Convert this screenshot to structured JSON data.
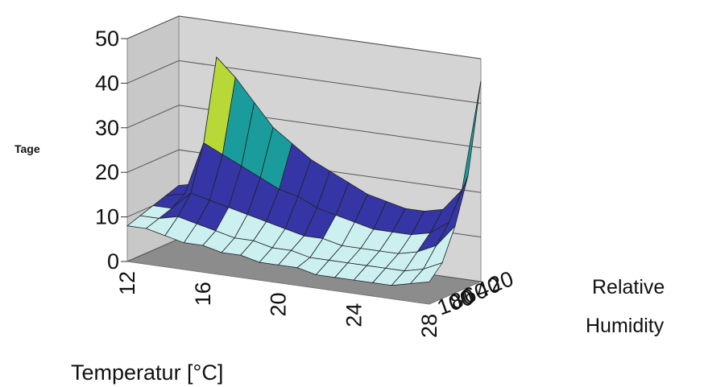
{
  "chart_data": {
    "type": "surface",
    "y_label": "Tage",
    "x_label": "Temperatur [°C]",
    "z_label_lines": [
      "Relative",
      "Humidity"
    ],
    "categories": [
      "12",
      null,
      null,
      null,
      "16",
      null,
      null,
      null,
      "20",
      null,
      null,
      null,
      "24",
      null,
      null,
      null,
      "28"
    ],
    "series": [
      {
        "name": "20",
        "values": [
          12,
          13,
          42,
          38,
          33,
          28,
          25,
          22,
          20,
          18,
          16,
          15,
          14,
          14,
          15,
          20,
          45
        ]
      },
      {
        "name": "40",
        "values": [
          11,
          12,
          24,
          22,
          20,
          18,
          16,
          15,
          13,
          12,
          11,
          10,
          10,
          10,
          11,
          14,
          25
        ]
      },
      {
        "name": "60",
        "values": [
          10,
          10,
          14,
          13,
          12,
          11,
          10,
          9,
          8,
          8,
          7,
          7,
          7,
          7,
          8,
          10,
          15
        ]
      },
      {
        "name": "80",
        "values": [
          9,
          9,
          10,
          9,
          8,
          7,
          7,
          6,
          6,
          5,
          5,
          5,
          5,
          5,
          5,
          6,
          8
        ]
      },
      {
        "name": "100",
        "values": [
          8,
          8,
          7,
          6,
          6,
          5,
          5,
          4,
          4,
          4,
          3,
          3,
          3,
          3,
          3,
          4,
          5
        ]
      }
    ],
    "ylim": [
      0,
      50
    ],
    "yticks": [
      0,
      10,
      20,
      30,
      40,
      50
    ],
    "grid": true,
    "color_bands": [
      {
        "from": 0,
        "to": 10,
        "color": "#ccf0f0"
      },
      {
        "from": 10,
        "to": 20,
        "color": "#3535a6"
      },
      {
        "from": 20,
        "to": 30,
        "color": "#1a9c9c"
      },
      {
        "from": 30,
        "to": 50,
        "color": "#b8d838"
      }
    ]
  }
}
